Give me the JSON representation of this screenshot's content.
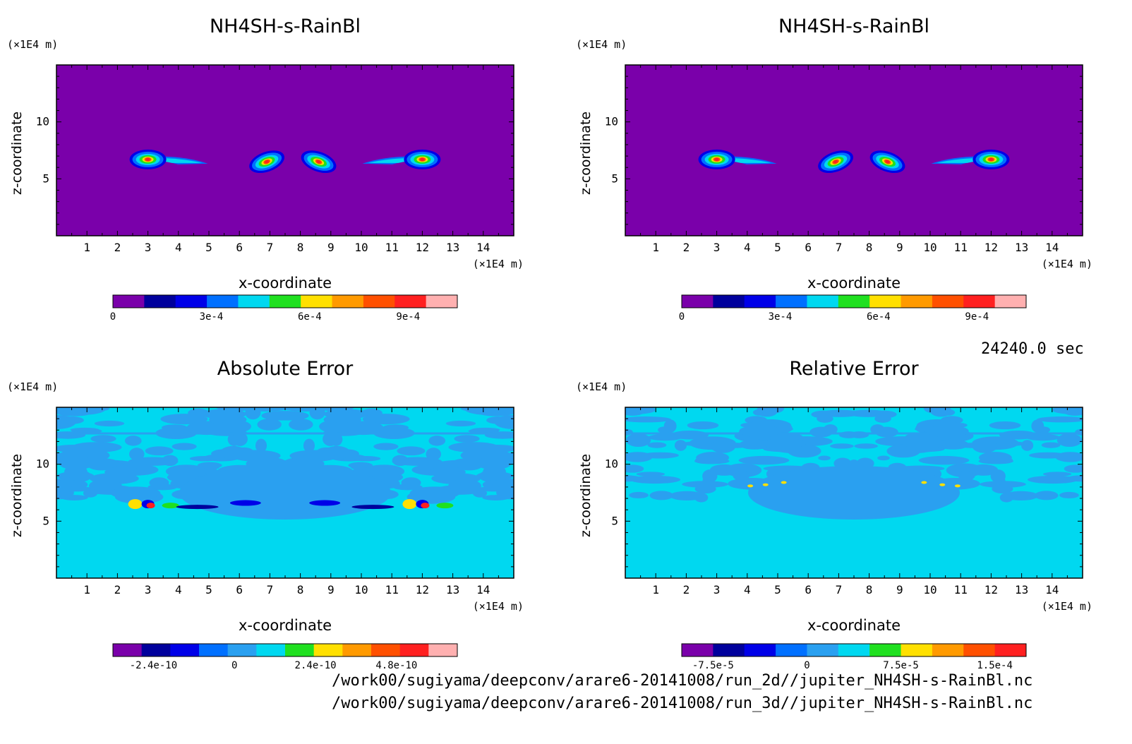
{
  "footer": {
    "time": "24240.0 sec",
    "path_2d": "/work00/sugiyama/deepconv/arare6-20141008/run_2d//jupiter_NH4SH-s-RainBl.nc",
    "path_3d": "/work00/sugiyama/deepconv/arare6-20141008/run_3d//jupiter_NH4SH-s-RainBl.nc"
  },
  "colors": {
    "field_background": "#7a00aa",
    "error_background": "#00d8f0",
    "error_patch": "#2aa0f0"
  },
  "chart_data": [
    {
      "type": "heatmap",
      "title": "NH4SH-s-RainBl",
      "xlabel": "x-coordinate",
      "ylabel": "z-coordinate",
      "x_unit": "(×1E4 m)",
      "y_unit": "(×1E4 m)",
      "xlim": [
        0,
        15
      ],
      "ylim": [
        0,
        15
      ],
      "x_ticks": [
        1,
        2,
        3,
        4,
        5,
        6,
        7,
        8,
        9,
        10,
        11,
        12,
        13,
        14
      ],
      "y_ticks": [
        5,
        10
      ],
      "colorbar": {
        "min": 0,
        "max": 0.00105,
        "levels": [
          0,
          0.0001,
          0.0002,
          0.0003,
          0.0004,
          0.0005,
          0.0006,
          0.0007,
          0.0008,
          0.0009,
          0.001
        ],
        "colors": [
          "#7a00aa",
          "#00009c",
          "#0000e8",
          "#0070ff",
          "#00d8f0",
          "#20e020",
          "#ffe000",
          "#ff9a00",
          "#ff5000",
          "#ff2020",
          "#ffb0b0"
        ],
        "tick_labels": [
          "0",
          "3e-4",
          "6e-4",
          "9e-4"
        ],
        "tick_values": [
          0,
          0.0003,
          0.0006,
          0.0009
        ]
      },
      "blobs": [
        {
          "x": 3.0,
          "z": 6.7,
          "peak": 0.0009
        },
        {
          "x": 6.9,
          "z": 6.5,
          "peak": 0.00095
        },
        {
          "x": 8.6,
          "z": 6.5,
          "peak": 0.00095
        },
        {
          "x": 12.0,
          "z": 6.7,
          "peak": 0.0009
        }
      ]
    },
    {
      "type": "heatmap",
      "title": "NH4SH-s-RainBl",
      "xlabel": "x-coordinate",
      "ylabel": "z-coordinate",
      "x_unit": "(×1E4 m)",
      "y_unit": "(×1E4 m)",
      "xlim": [
        0,
        15
      ],
      "ylim": [
        0,
        15
      ],
      "x_ticks": [
        1,
        2,
        3,
        4,
        5,
        6,
        7,
        8,
        9,
        10,
        11,
        12,
        13,
        14
      ],
      "y_ticks": [
        5,
        10
      ],
      "colorbar": {
        "min": 0,
        "max": 0.00105,
        "levels": [
          0,
          0.0001,
          0.0002,
          0.0003,
          0.0004,
          0.0005,
          0.0006,
          0.0007,
          0.0008,
          0.0009,
          0.001
        ],
        "colors": [
          "#7a00aa",
          "#00009c",
          "#0000e8",
          "#0070ff",
          "#00d8f0",
          "#20e020",
          "#ffe000",
          "#ff9a00",
          "#ff5000",
          "#ff2020",
          "#ffb0b0"
        ],
        "tick_labels": [
          "0",
          "3e-4",
          "6e-4",
          "9e-4"
        ],
        "tick_values": [
          0,
          0.0003,
          0.0006,
          0.0009
        ]
      },
      "blobs": [
        {
          "x": 3.0,
          "z": 6.7,
          "peak": 0.0009
        },
        {
          "x": 6.9,
          "z": 6.5,
          "peak": 0.00095
        },
        {
          "x": 8.6,
          "z": 6.5,
          "peak": 0.00095
        },
        {
          "x": 12.0,
          "z": 6.7,
          "peak": 0.0009
        }
      ]
    },
    {
      "type": "heatmap",
      "title": "Absolute Error",
      "xlabel": "x-coordinate",
      "ylabel": "z-coordinate",
      "x_unit": "(×1E4 m)",
      "y_unit": "(×1E4 m)",
      "xlim": [
        0,
        15
      ],
      "ylim": [
        0,
        15
      ],
      "x_ticks": [
        1,
        2,
        3,
        4,
        5,
        6,
        7,
        8,
        9,
        10,
        11,
        12,
        13,
        14
      ],
      "y_ticks": [
        5,
        10
      ],
      "colorbar": {
        "min": -3.6e-10,
        "max": 6.6e-10,
        "levels": [
          -3.6e-10,
          -2.4e-10,
          -1.2e-10,
          0,
          1.2e-10,
          2.4e-10,
          3.6e-10,
          4.8e-10,
          6e-10
        ],
        "colors": [
          "#7a00aa",
          "#00009c",
          "#0000e8",
          "#0070ff",
          "#2aa0f0",
          "#00d8f0",
          "#20e020",
          "#ffe000",
          "#ff9a00",
          "#ff5000",
          "#ff2020",
          "#ffb0b0"
        ],
        "tick_labels": [
          "-2.4e-10",
          "0",
          "2.4e-10",
          "4.8e-10"
        ],
        "tick_values": [
          -2.4e-10,
          0,
          2.4e-10,
          4.8e-10
        ]
      },
      "hotspots": [
        {
          "x": 3.0,
          "z": 6.5
        },
        {
          "x": 12.0,
          "z": 6.5
        }
      ]
    },
    {
      "type": "heatmap",
      "title": "Relative Error",
      "xlabel": "x-coordinate",
      "ylabel": "z-coordinate",
      "x_unit": "(×1E4 m)",
      "y_unit": "(×1E4 m)",
      "xlim": [
        0,
        15
      ],
      "ylim": [
        0,
        15
      ],
      "x_ticks": [
        1,
        2,
        3,
        4,
        5,
        6,
        7,
        8,
        9,
        10,
        11,
        12,
        13,
        14
      ],
      "y_ticks": [
        5,
        10
      ],
      "colorbar": {
        "min": -0.0001,
        "max": 0.000175,
        "levels": [
          -7.5e-05,
          0,
          7.5e-05,
          0.00015
        ],
        "colors": [
          "#7a00aa",
          "#00009c",
          "#0000e8",
          "#0070ff",
          "#2aa0f0",
          "#00d8f0",
          "#20e020",
          "#ffe000",
          "#ff9a00",
          "#ff5000",
          "#ff2020"
        ],
        "tick_labels": [
          "-7.5e-5",
          "0",
          "7.5e-5",
          "1.5e-4"
        ],
        "tick_values": [
          -7.5e-05,
          0,
          7.5e-05,
          0.00015
        ]
      },
      "hotspots": []
    }
  ]
}
